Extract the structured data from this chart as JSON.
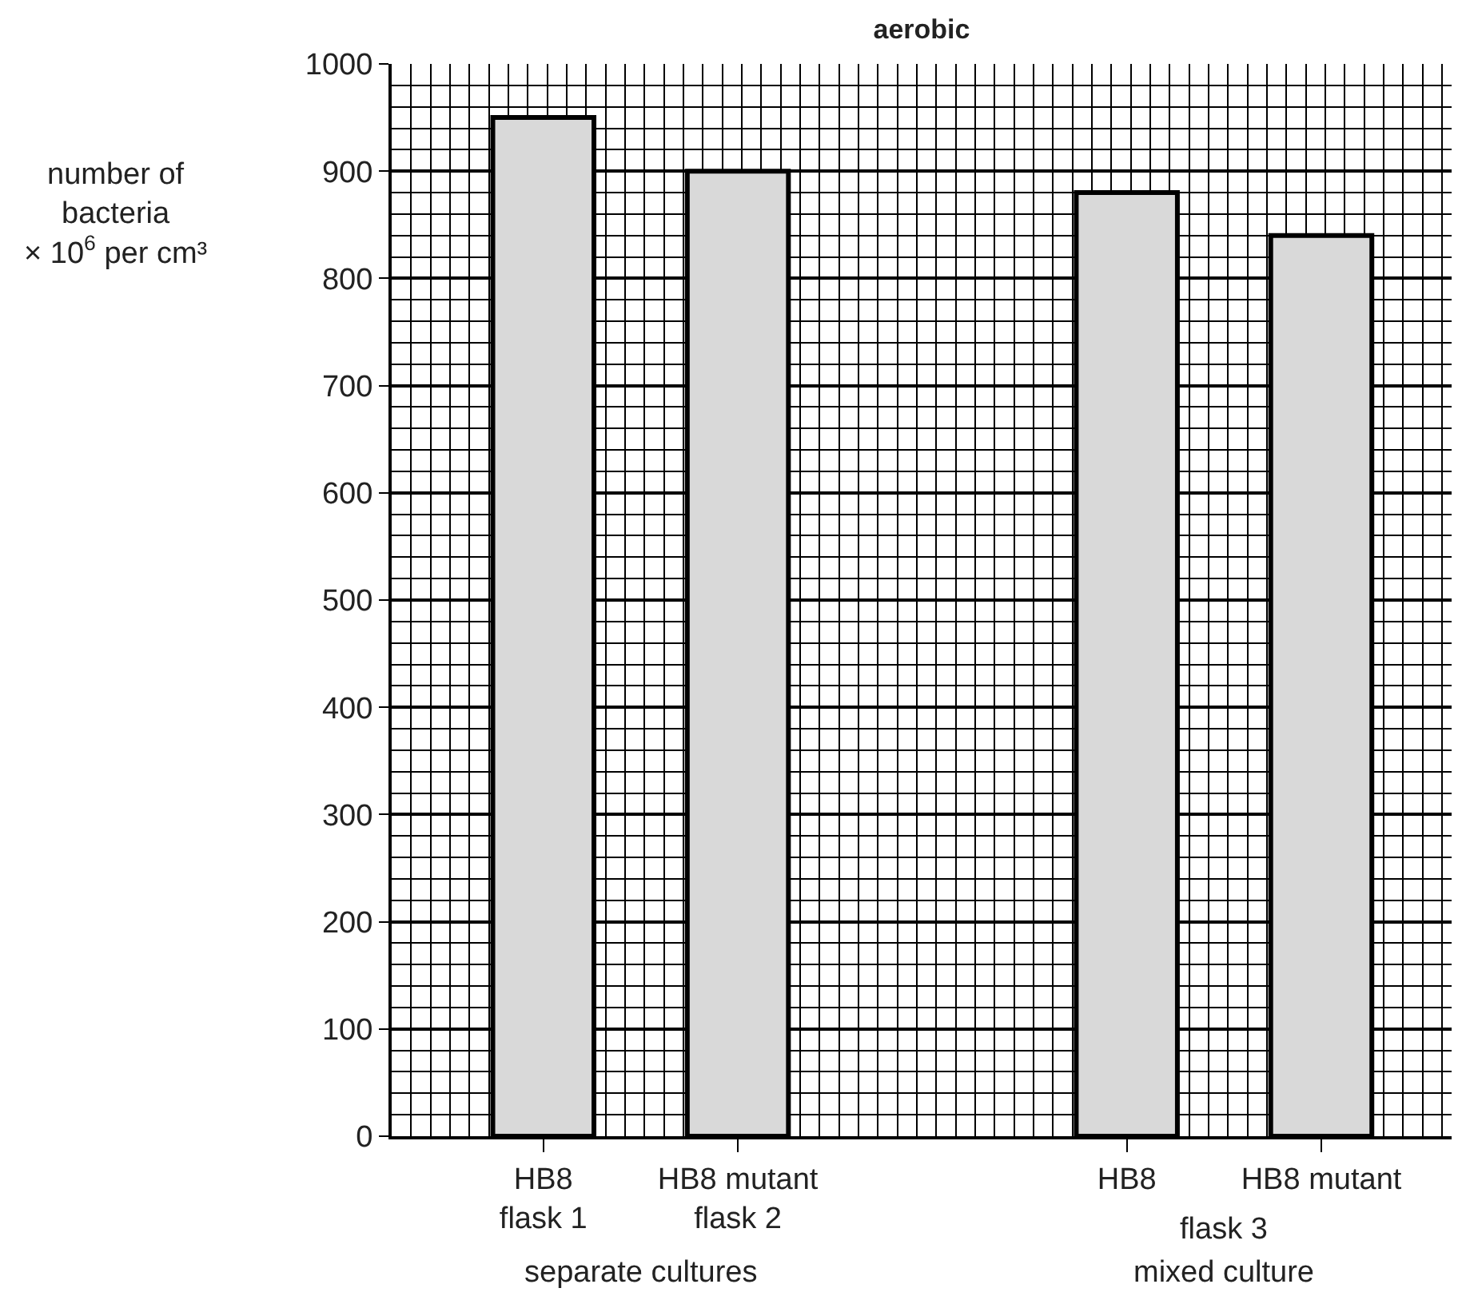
{
  "chart_data": {
    "type": "bar",
    "title": "aerobic",
    "ylabel": "number of\nbacteria\n× 10$^{6}$ per cm³",
    "categories": [
      "HB8\nflask 1",
      "HB8 mutant\nflask 2",
      null,
      "HB8",
      "HB8 mutant"
    ],
    "values": [
      950,
      900,
      null,
      880,
      840
    ],
    "color": "#d9d9d9",
    "ylim": [
      0,
      1000
    ],
    "yticks": [
      0,
      100,
      200,
      300,
      400,
      500,
      600,
      700,
      800,
      900,
      1000
    ],
    "grid": true,
    "annotations": [
      "flask 3",
      "separate cultures",
      "mixed culture"
    ]
  }
}
